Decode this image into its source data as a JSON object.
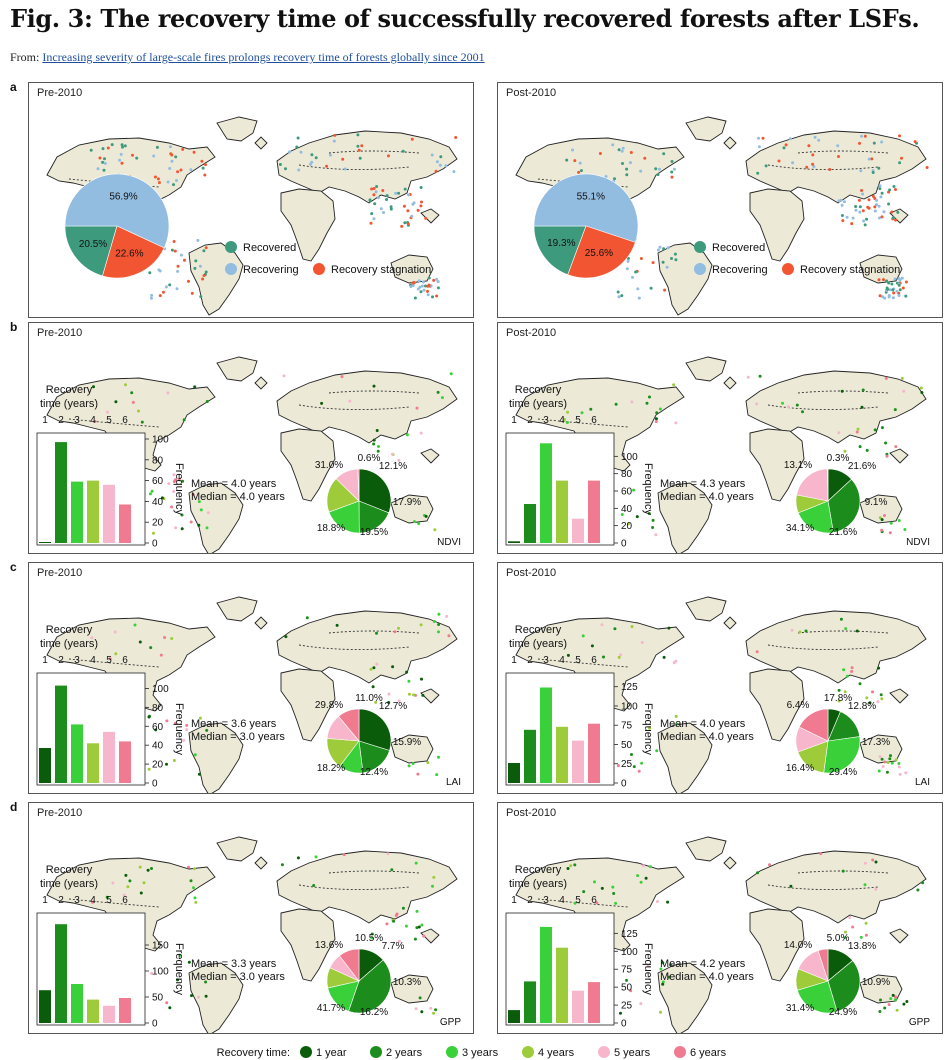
{
  "header": {
    "title": "Fig. 3: The recovery time of successfully recovered forests after LSFs.",
    "from_label": "From:",
    "from_link": "Increasing severity of large-scale fires prolongs recovery time of forests globally since 2001"
  },
  "colors": {
    "land": "#ecead7",
    "recovered": "#3d9a7d",
    "recovering": "#92bce0",
    "stagnation": "#f25531",
    "year1": "#0a5c0a",
    "year2": "#1c8c1c",
    "year3": "#3ad03a",
    "year4": "#9ecb3a",
    "year5": "#f7b6cc",
    "year6": "#f07a90"
  },
  "legend_bottom": {
    "title": "Recovery time:",
    "items": [
      "1 year",
      "2 years",
      "3 years",
      "4 years",
      "5 years",
      "6 years"
    ]
  },
  "chart_data": [
    {
      "panel": "a",
      "period": "Pre-2010",
      "type": "pie",
      "labels": [
        "Recovered",
        "Recovering",
        "Recovery stagnation"
      ],
      "values": [
        20.5,
        56.9,
        22.6
      ],
      "value_labels": [
        "20.5%",
        "56.9%",
        "22.6%"
      ]
    },
    {
      "panel": "a",
      "period": "Post-2010",
      "type": "pie",
      "labels": [
        "Recovered",
        "Recovering",
        "Recovery stagnation"
      ],
      "values": [
        19.3,
        55.1,
        25.6
      ],
      "value_labels": [
        "19.3%",
        "55.1%",
        "25.6%"
      ]
    },
    {
      "panel": "b",
      "period": "Pre-2010",
      "index": "NDVI",
      "type": "bar",
      "hist_title": "Recovery\ntime (years)",
      "categories": [
        "1",
        "2",
        "3",
        "4",
        "5",
        "6"
      ],
      "frequency": [
        1,
        97,
        59,
        60,
        56,
        37
      ],
      "ylim": [
        0,
        100
      ],
      "yticks": [
        0,
        20,
        40,
        60,
        80,
        100
      ],
      "ylabel": "Frequency",
      "mean": "Mean = 4.0 years",
      "median": "Median = 4.0 years",
      "pie_percents": [
        31.0,
        18.8,
        19.5,
        17.9,
        12.1,
        0.6
      ],
      "pie_labels": [
        "31.0%",
        "18.8%",
        "19.5%",
        "17.9%",
        "12.1%",
        "0.6%"
      ]
    },
    {
      "panel": "b",
      "period": "Post-2010",
      "index": "NDVI",
      "type": "bar",
      "hist_title": "Recovery\ntime (years)",
      "categories": [
        "1",
        "2",
        "3",
        "4",
        "5",
        "6"
      ],
      "frequency": [
        2,
        45,
        115,
        72,
        28,
        72
      ],
      "ylim": [
        0,
        120
      ],
      "yticks": [
        0,
        20,
        40,
        60,
        80,
        100
      ],
      "ylabel": "Frequency",
      "mean": "Mean = 4.3 years",
      "median": "Median = 4.0 years",
      "pie_percents": [
        13.1,
        34.1,
        21.6,
        9.1,
        21.6,
        0.3
      ],
      "pie_labels": [
        "13.1%",
        "34.1%",
        "21.6%",
        "9.1%",
        "21.6%",
        "0.3%"
      ]
    },
    {
      "panel": "c",
      "period": "Pre-2010",
      "index": "LAI",
      "type": "bar",
      "hist_title": "Recovery\ntime (years)",
      "categories": [
        "1",
        "2",
        "3",
        "4",
        "5",
        "6"
      ],
      "frequency": [
        37,
        103,
        62,
        42,
        54,
        44
      ],
      "ylim": [
        0,
        110
      ],
      "yticks": [
        0,
        20,
        40,
        60,
        80,
        100
      ],
      "ylabel": "Frequency",
      "mean": "Mean = 3.6 years",
      "median": "Median = 3.0 years",
      "pie_percents": [
        29.8,
        18.2,
        12.4,
        15.9,
        12.7,
        11.0
      ],
      "pie_labels": [
        "29.8%",
        "18.2%",
        "12.4%",
        "15.9%",
        "12.7%",
        "11.0%"
      ]
    },
    {
      "panel": "c",
      "period": "Post-2010",
      "index": "LAI",
      "type": "bar",
      "hist_title": "Recovery\ntime (years)",
      "categories": [
        "1",
        "2",
        "3",
        "4",
        "5",
        "6"
      ],
      "frequency": [
        26,
        69,
        124,
        73,
        55,
        77
      ],
      "ylim": [
        0,
        135
      ],
      "yticks": [
        0,
        25,
        50,
        75,
        100,
        125
      ],
      "ylabel": "Frequency",
      "mean": "Mean = 4.0 years",
      "median": "Median = 4.0 years",
      "pie_percents": [
        6.4,
        16.4,
        29.4,
        17.3,
        12.8,
        17.8
      ],
      "pie_labels": [
        "6.4%",
        "16.4%",
        "29.4%",
        "17.3%",
        "12.8%",
        "17.8%"
      ]
    },
    {
      "panel": "d",
      "period": "Pre-2010",
      "index": "GPP",
      "type": "bar",
      "hist_title": "Recovery\ntime (years)",
      "categories": [
        "1",
        "2",
        "3",
        "4",
        "5",
        "6"
      ],
      "frequency": [
        63,
        190,
        75,
        45,
        33,
        48
      ],
      "ylim": [
        0,
        200
      ],
      "yticks": [
        0,
        50,
        100,
        150
      ],
      "ylabel": "Frequency",
      "mean": "Mean = 3.3 years",
      "median": "Median = 3.0 years",
      "pie_percents": [
        13.6,
        41.7,
        16.2,
        10.3,
        7.7,
        10.5
      ],
      "pie_labels": [
        "13.6%",
        "41.7%",
        "16.2%",
        "10.3%",
        "7.7%",
        "10.5%"
      ]
    },
    {
      "panel": "d",
      "period": "Post-2010",
      "index": "GPP",
      "type": "bar",
      "hist_title": "Recovery\ntime (years)",
      "categories": [
        "1",
        "2",
        "3",
        "4",
        "5",
        "6"
      ],
      "frequency": [
        18,
        58,
        134,
        105,
        45,
        57
      ],
      "ylim": [
        0,
        145
      ],
      "yticks": [
        0,
        25,
        50,
        75,
        100,
        125
      ],
      "ylabel": "Frequency",
      "mean": "Mean = 4.2 years",
      "median": "Median = 4.0 years",
      "pie_percents": [
        14.0,
        31.4,
        24.9,
        10.9,
        13.8,
        5.0
      ],
      "pie_labels": [
        "14.0%",
        "31.4%",
        "24.9%",
        "10.9%",
        "13.8%",
        "5.0%"
      ]
    }
  ]
}
